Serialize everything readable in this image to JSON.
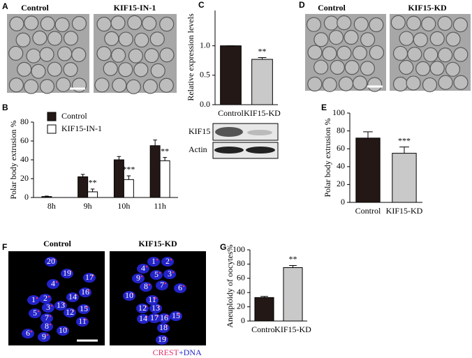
{
  "chart_data": [
    {
      "type": "bar",
      "panel": "B",
      "ylabel": "Polar body extrusion %",
      "categories": [
        "8h",
        "9h",
        "10h",
        "11h"
      ],
      "series": [
        {
          "name": "Control",
          "color": "#231815",
          "values": [
            1,
            22,
            40,
            55
          ],
          "errors": [
            0.5,
            2.5,
            3.5,
            6
          ]
        },
        {
          "name": "KIF15-IN-1",
          "color": "#ffffff",
          "values": [
            0,
            6,
            19,
            39
          ],
          "errors": [
            0,
            3,
            4,
            3.5
          ],
          "significance": [
            null,
            "**",
            "***",
            "**"
          ]
        }
      ],
      "ylim": [
        0,
        80
      ],
      "yticks": [
        0,
        20,
        40,
        60,
        80
      ],
      "legend": "upper left"
    },
    {
      "type": "bar",
      "panel": "C",
      "ylabel": "Relative expression levels",
      "categories": [
        "Control",
        "KIF15-KD"
      ],
      "values": [
        1.0,
        0.77
      ],
      "errors": [
        0,
        0.03
      ],
      "colors": [
        "#231815",
        "#c9c9c9"
      ],
      "significance": [
        null,
        "**"
      ],
      "ylim": [
        0,
        1.6
      ],
      "yticks": [
        {
          "value": 0,
          "label": "0.0"
        },
        {
          "value": 0.5,
          "label": "0.5"
        },
        {
          "value": 1,
          "label": "1.0"
        }
      ]
    },
    {
      "type": "bar",
      "panel": "E",
      "ylabel": "Polar body extrusion %",
      "categories": [
        "Control",
        "KIF15-KD"
      ],
      "values": [
        72,
        55
      ],
      "errors": [
        7,
        7
      ],
      "colors": [
        "#231815",
        "#c9c9c9"
      ],
      "significance": [
        null,
        "***"
      ],
      "ylim": [
        0,
        100
      ],
      "yticks": [
        0,
        20,
        40,
        60,
        80,
        100
      ]
    },
    {
      "type": "bar",
      "panel": "G",
      "ylabel": "Aneuploidy of oocytes%",
      "categories": [
        "Control",
        "KIF15-KD"
      ],
      "values": [
        33,
        75
      ],
      "errors": [
        1.5,
        3
      ],
      "colors": [
        "#231815",
        "#c9c9c9"
      ],
      "significance": [
        null,
        "**"
      ],
      "ylim": [
        0,
        100
      ],
      "yticks": [
        0,
        20,
        40,
        60,
        80,
        100
      ]
    }
  ],
  "panels": {
    "A": {
      "letter": "A",
      "labels": [
        "Control",
        "KIF15-IN-1"
      ]
    },
    "C": {
      "blot_labels": [
        "KIF15",
        "Actin"
      ]
    },
    "D": {
      "letter": "D",
      "labels": [
        "Control",
        "KIF15-KD"
      ]
    },
    "F": {
      "letter": "F",
      "labels": [
        "Control",
        "KIF15-KD"
      ],
      "stain": [
        "CREST",
        "+DNA"
      ],
      "control_numbers": [
        "1",
        "2",
        "3",
        "4",
        "5",
        "6",
        "7",
        "8",
        "9",
        "10",
        "11",
        "12",
        "13",
        "14",
        "15",
        "16",
        "17",
        "19",
        "20"
      ],
      "kd_numbers": [
        "1",
        "2",
        "3",
        "4",
        "5",
        "6",
        "7",
        "8",
        "9",
        "10",
        "11",
        "12",
        "13",
        "14",
        "15",
        "16",
        "17",
        "18",
        "19"
      ]
    }
  }
}
